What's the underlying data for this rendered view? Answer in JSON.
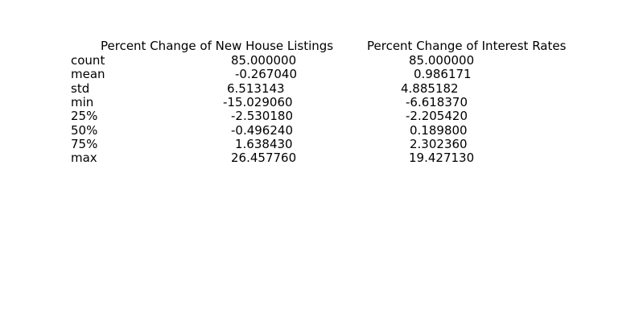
{
  "table": {
    "headers": [
      "Percent Change of New House Listings",
      "Percent Change of Interest Rates"
    ],
    "rows": [
      {
        "label": "count",
        "values": [
          "85.000000",
          "85.000000"
        ]
      },
      {
        "label": "mean",
        "values": [
          "-0.267040",
          "0.986171"
        ]
      },
      {
        "label": "std",
        "values": [
          "6.513143",
          "4.885182"
        ]
      },
      {
        "label": "min",
        "values": [
          "-15.029060",
          "-6.618370"
        ]
      },
      {
        "label": "25%",
        "values": [
          "-2.530180",
          "-2.205420"
        ]
      },
      {
        "label": "50%",
        "values": [
          "-0.496240",
          "0.189800"
        ]
      },
      {
        "label": "75%",
        "values": [
          "1.638430",
          "2.302360"
        ]
      },
      {
        "label": "max",
        "values": [
          "26.457760",
          "19.427130"
        ]
      }
    ]
  }
}
